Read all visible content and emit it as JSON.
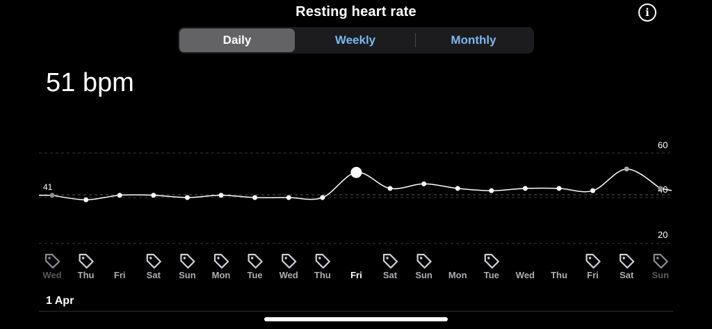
{
  "header": {
    "title": "Resting heart rate",
    "info_icon": "info-circle-icon"
  },
  "segmented": {
    "options": [
      {
        "label": "Daily",
        "active": true
      },
      {
        "label": "Weekly",
        "active": false
      },
      {
        "label": "Monthly",
        "active": false
      }
    ]
  },
  "summary": {
    "value": "51 bpm"
  },
  "chart_data": {
    "type": "line",
    "y_ticks": [
      "60",
      "40",
      "20"
    ],
    "ylim": [
      20,
      60
    ],
    "baseline_label": "41",
    "grid": "dashed horizontal",
    "days": [
      {
        "label": "Wed",
        "value": 41.0,
        "tag": true,
        "dim": true
      },
      {
        "label": "Thu",
        "value": 39.0,
        "tag": true,
        "dim": false
      },
      {
        "label": "Fri",
        "value": 41.0,
        "tag": false,
        "dim": false
      },
      {
        "label": "Sat",
        "value": 41.0,
        "tag": true,
        "dim": false
      },
      {
        "label": "Sun",
        "value": 40.0,
        "tag": true,
        "dim": false
      },
      {
        "label": "Mon",
        "value": 41.0,
        "tag": true,
        "dim": false
      },
      {
        "label": "Tue",
        "value": 40.0,
        "tag": true,
        "dim": false
      },
      {
        "label": "Wed",
        "value": 40.0,
        "tag": true,
        "dim": false
      },
      {
        "label": "Thu",
        "value": 40.0,
        "tag": true,
        "dim": false
      },
      {
        "label": "Fri",
        "value": 51.0,
        "tag": false,
        "dim": false,
        "selected": true
      },
      {
        "label": "Sat",
        "value": 44.0,
        "tag": true,
        "dim": false
      },
      {
        "label": "Sun",
        "value": 46.0,
        "tag": true,
        "dim": false
      },
      {
        "label": "Mon",
        "value": 44.0,
        "tag": false,
        "dim": false
      },
      {
        "label": "Tue",
        "value": 43.0,
        "tag": true,
        "dim": false
      },
      {
        "label": "Wed",
        "value": 44.0,
        "tag": false,
        "dim": false
      },
      {
        "label": "Thu",
        "value": 44.0,
        "tag": false,
        "dim": false
      },
      {
        "label": "Fri",
        "value": 43.0,
        "tag": true,
        "dim": false
      },
      {
        "label": "Sat",
        "value": 52.5,
        "tag": true,
        "dim": false
      },
      {
        "label": "Sun",
        "value": 44.0,
        "tag": true,
        "dim": true
      }
    ],
    "tag_icon": "tag-icon"
  },
  "footer": {
    "date_label": "1 Apr"
  },
  "colors": {
    "accent": "#7ab8f0",
    "active_segment": "#636366",
    "line": "#ffffff"
  }
}
